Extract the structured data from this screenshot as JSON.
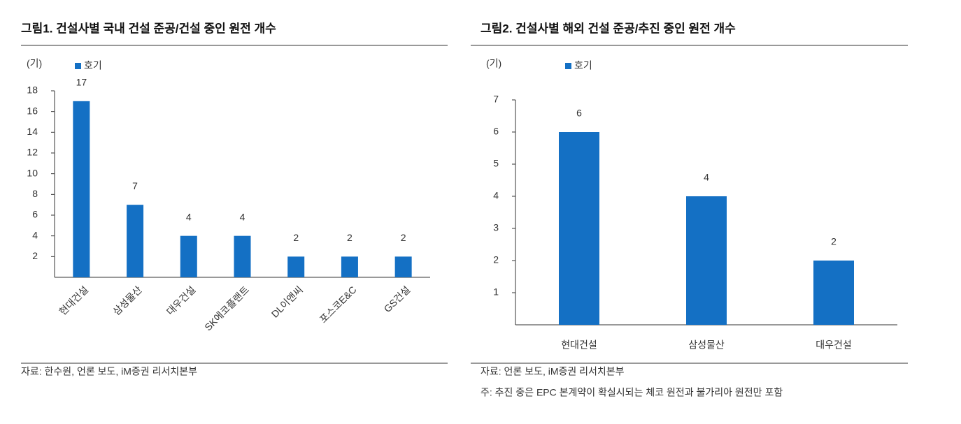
{
  "chart_data": [
    {
      "type": "bar",
      "title": "그림1.  건설사별 국내 건설 준공/건설 중인 원전 개수",
      "unit": "(기)",
      "categories": [
        "현대건설",
        "삼성물산",
        "대우건설",
        "SK에코플랜트",
        "DL이앤씨",
        "포스코E&C",
        "GS건설"
      ],
      "series": [
        {
          "name": "호기",
          "color": "#1470c4",
          "values": [
            17,
            7,
            4,
            4,
            2,
            2,
            2
          ]
        }
      ],
      "ylim": [
        0,
        18
      ],
      "yticks": [
        2,
        4,
        6,
        8,
        10,
        12,
        14,
        16,
        18
      ],
      "notes": [
        "자료: 한수원, 언론 보도, iM증권 리서치본부"
      ]
    },
    {
      "type": "bar",
      "title": "그림2.  건설사별 해외 건설 준공/추진 중인 원전 개수",
      "unit": "(기)",
      "categories": [
        "현대건설",
        "삼성물산",
        "대우건설"
      ],
      "series": [
        {
          "name": "호기",
          "color": "#1470c4",
          "values": [
            6,
            4,
            2
          ]
        }
      ],
      "ylim": [
        0,
        7
      ],
      "yticks": [
        1,
        2,
        3,
        4,
        5,
        6,
        7
      ],
      "notes": [
        "자료: 언론 보도, iM증권 리서치본부",
        "주: 추진 중은 EPC 본계약이 확실시되는 체코 원전과 불가리아 원전만 포함"
      ]
    }
  ]
}
